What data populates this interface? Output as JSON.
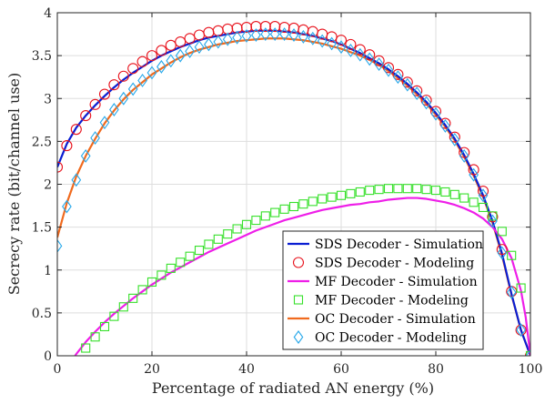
{
  "chart_data": {
    "type": "line",
    "xlabel": "Percentage of radiated AN energy (%)",
    "ylabel": "Secrecy rate (bit/channel use)",
    "xlim": [
      0,
      100
    ],
    "ylim": [
      0,
      4
    ],
    "x_ticks": [
      "0",
      "20",
      "40",
      "60",
      "80",
      "100"
    ],
    "y_ticks": [
      "0",
      "0.5",
      "1",
      "1.5",
      "2",
      "2.5",
      "3",
      "3.5",
      "4"
    ],
    "grid": true,
    "legend_position": "bottom-right",
    "series": [
      {
        "name": "SDS Decoder - Simulation",
        "style": "line",
        "color": "#0a1ed2",
        "x": [
          0,
          2,
          4,
          6,
          8,
          10,
          12,
          14,
          16,
          18,
          20,
          22,
          24,
          26,
          28,
          30,
          32,
          34,
          36,
          38,
          40,
          42,
          44,
          46,
          48,
          50,
          52,
          54,
          56,
          58,
          60,
          62,
          64,
          66,
          68,
          70,
          72,
          74,
          76,
          78,
          80,
          82,
          84,
          86,
          88,
          90,
          92,
          94,
          96,
          98,
          100
        ],
        "y": [
          2.2,
          2.47,
          2.66,
          2.8,
          2.92,
          3.03,
          3.13,
          3.22,
          3.3,
          3.37,
          3.44,
          3.5,
          3.55,
          3.6,
          3.64,
          3.68,
          3.71,
          3.73,
          3.75,
          3.77,
          3.78,
          3.79,
          3.79,
          3.79,
          3.78,
          3.77,
          3.75,
          3.73,
          3.7,
          3.67,
          3.63,
          3.58,
          3.53,
          3.47,
          3.41,
          3.34,
          3.26,
          3.17,
          3.07,
          2.96,
          2.83,
          2.69,
          2.53,
          2.34,
          2.12,
          1.87,
          1.57,
          1.19,
          0.72,
          0.3,
          0
        ]
      },
      {
        "name": "SDS Decoder - Modeling",
        "style": "marker",
        "marker": "circle",
        "color": "#e8141e",
        "x": [
          0,
          2,
          4,
          6,
          8,
          10,
          12,
          14,
          16,
          18,
          20,
          22,
          24,
          26,
          28,
          30,
          32,
          34,
          36,
          38,
          40,
          42,
          44,
          46,
          48,
          50,
          52,
          54,
          56,
          58,
          60,
          62,
          64,
          66,
          68,
          70,
          72,
          74,
          76,
          78,
          80,
          82,
          84,
          86,
          88,
          90,
          92,
          94,
          96,
          98,
          100
        ],
        "y": [
          2.2,
          2.45,
          2.64,
          2.8,
          2.93,
          3.05,
          3.16,
          3.26,
          3.35,
          3.43,
          3.5,
          3.56,
          3.62,
          3.66,
          3.7,
          3.74,
          3.77,
          3.79,
          3.81,
          3.82,
          3.83,
          3.84,
          3.84,
          3.84,
          3.83,
          3.82,
          3.8,
          3.78,
          3.75,
          3.72,
          3.68,
          3.63,
          3.57,
          3.51,
          3.44,
          3.36,
          3.28,
          3.19,
          3.09,
          2.98,
          2.85,
          2.71,
          2.55,
          2.37,
          2.17,
          1.92,
          1.62,
          1.24,
          0.75,
          0.3,
          0
        ]
      },
      {
        "name": "MF Decoder - Simulation",
        "style": "line",
        "color": "#ee1ee8",
        "x": [
          2,
          4,
          6,
          8,
          10,
          12,
          14,
          16,
          18,
          20,
          22,
          24,
          26,
          28,
          30,
          32,
          34,
          36,
          38,
          40,
          42,
          44,
          46,
          48,
          50,
          52,
          54,
          56,
          58,
          60,
          62,
          64,
          66,
          68,
          70,
          72,
          74,
          76,
          78,
          80,
          82,
          84,
          86,
          88,
          90,
          92,
          94,
          96,
          98,
          99,
          100
        ],
        "y": [
          -0.15,
          0.02,
          0.16,
          0.28,
          0.39,
          0.49,
          0.58,
          0.67,
          0.75,
          0.83,
          0.9,
          0.97,
          1.03,
          1.09,
          1.15,
          1.21,
          1.26,
          1.31,
          1.36,
          1.41,
          1.46,
          1.5,
          1.54,
          1.58,
          1.61,
          1.64,
          1.67,
          1.7,
          1.72,
          1.74,
          1.76,
          1.77,
          1.79,
          1.8,
          1.82,
          1.83,
          1.84,
          1.84,
          1.83,
          1.81,
          1.79,
          1.76,
          1.72,
          1.67,
          1.6,
          1.5,
          1.36,
          1.14,
          0.76,
          0.45,
          0
        ]
      },
      {
        "name": "MF Decoder - Modeling",
        "style": "marker",
        "marker": "square",
        "color": "#36e02a",
        "x": [
          6,
          8,
          10,
          12,
          14,
          16,
          18,
          20,
          22,
          24,
          26,
          28,
          30,
          32,
          34,
          36,
          38,
          40,
          42,
          44,
          46,
          48,
          50,
          52,
          54,
          56,
          58,
          60,
          62,
          64,
          66,
          68,
          70,
          72,
          74,
          76,
          78,
          80,
          82,
          84,
          86,
          88,
          90,
          92,
          94,
          96,
          98,
          100
        ],
        "y": [
          0.09,
          0.22,
          0.34,
          0.46,
          0.57,
          0.67,
          0.77,
          0.86,
          0.94,
          1.02,
          1.09,
          1.16,
          1.23,
          1.3,
          1.36,
          1.42,
          1.48,
          1.53,
          1.58,
          1.63,
          1.67,
          1.71,
          1.74,
          1.77,
          1.8,
          1.83,
          1.85,
          1.87,
          1.89,
          1.91,
          1.93,
          1.94,
          1.95,
          1.95,
          1.95,
          1.95,
          1.94,
          1.93,
          1.91,
          1.88,
          1.84,
          1.79,
          1.73,
          1.63,
          1.45,
          1.17,
          0.79,
          0
        ]
      },
      {
        "name": "OC Decoder - Simulation",
        "style": "line",
        "color": "#f06a1e",
        "x": [
          0,
          2,
          4,
          6,
          8,
          10,
          12,
          14,
          16,
          18,
          20,
          22,
          24,
          26,
          28,
          30,
          32,
          34,
          36,
          38,
          40,
          42,
          44,
          46,
          48,
          50,
          52,
          54,
          56,
          58,
          60,
          62,
          64,
          66,
          68,
          70,
          72,
          74,
          76,
          78,
          80,
          82,
          84,
          86,
          88,
          90,
          92,
          94,
          96,
          98,
          100
        ],
        "y": [
          1.38,
          1.78,
          2.09,
          2.33,
          2.53,
          2.71,
          2.86,
          2.99,
          3.1,
          3.19,
          3.28,
          3.35,
          3.42,
          3.48,
          3.53,
          3.57,
          3.6,
          3.63,
          3.65,
          3.67,
          3.68,
          3.69,
          3.7,
          3.7,
          3.7,
          3.69,
          3.68,
          3.66,
          3.64,
          3.61,
          3.58,
          3.54,
          3.5,
          3.45,
          3.39,
          3.32,
          3.24,
          3.15,
          3.05,
          2.94,
          2.81,
          2.67,
          2.51,
          2.32,
          2.1,
          1.85,
          1.55,
          1.17,
          0.71,
          0.3,
          0
        ]
      },
      {
        "name": "OC Decoder - Modeling",
        "style": "marker",
        "marker": "diamond",
        "color": "#27a8ea",
        "x": [
          0,
          2,
          4,
          6,
          8,
          10,
          12,
          14,
          16,
          18,
          20,
          22,
          24,
          26,
          28,
          30,
          32,
          34,
          36,
          38,
          40,
          42,
          44,
          46,
          48,
          50,
          52,
          54,
          56,
          58,
          60,
          62,
          64,
          66,
          68,
          70,
          72,
          74,
          76,
          78,
          80,
          82,
          84,
          86,
          88,
          90,
          92,
          94,
          96,
          98,
          100
        ],
        "y": [
          1.28,
          1.74,
          2.05,
          2.33,
          2.54,
          2.72,
          2.87,
          3.0,
          3.11,
          3.21,
          3.3,
          3.37,
          3.44,
          3.5,
          3.55,
          3.6,
          3.63,
          3.66,
          3.69,
          3.71,
          3.73,
          3.74,
          3.75,
          3.75,
          3.75,
          3.74,
          3.72,
          3.7,
          3.67,
          3.64,
          3.6,
          3.56,
          3.51,
          3.46,
          3.4,
          3.33,
          3.25,
          3.16,
          3.06,
          2.95,
          2.82,
          2.68,
          2.52,
          2.33,
          2.11,
          1.87,
          1.57,
          1.2,
          0.74,
          0.3,
          0
        ]
      }
    ]
  }
}
